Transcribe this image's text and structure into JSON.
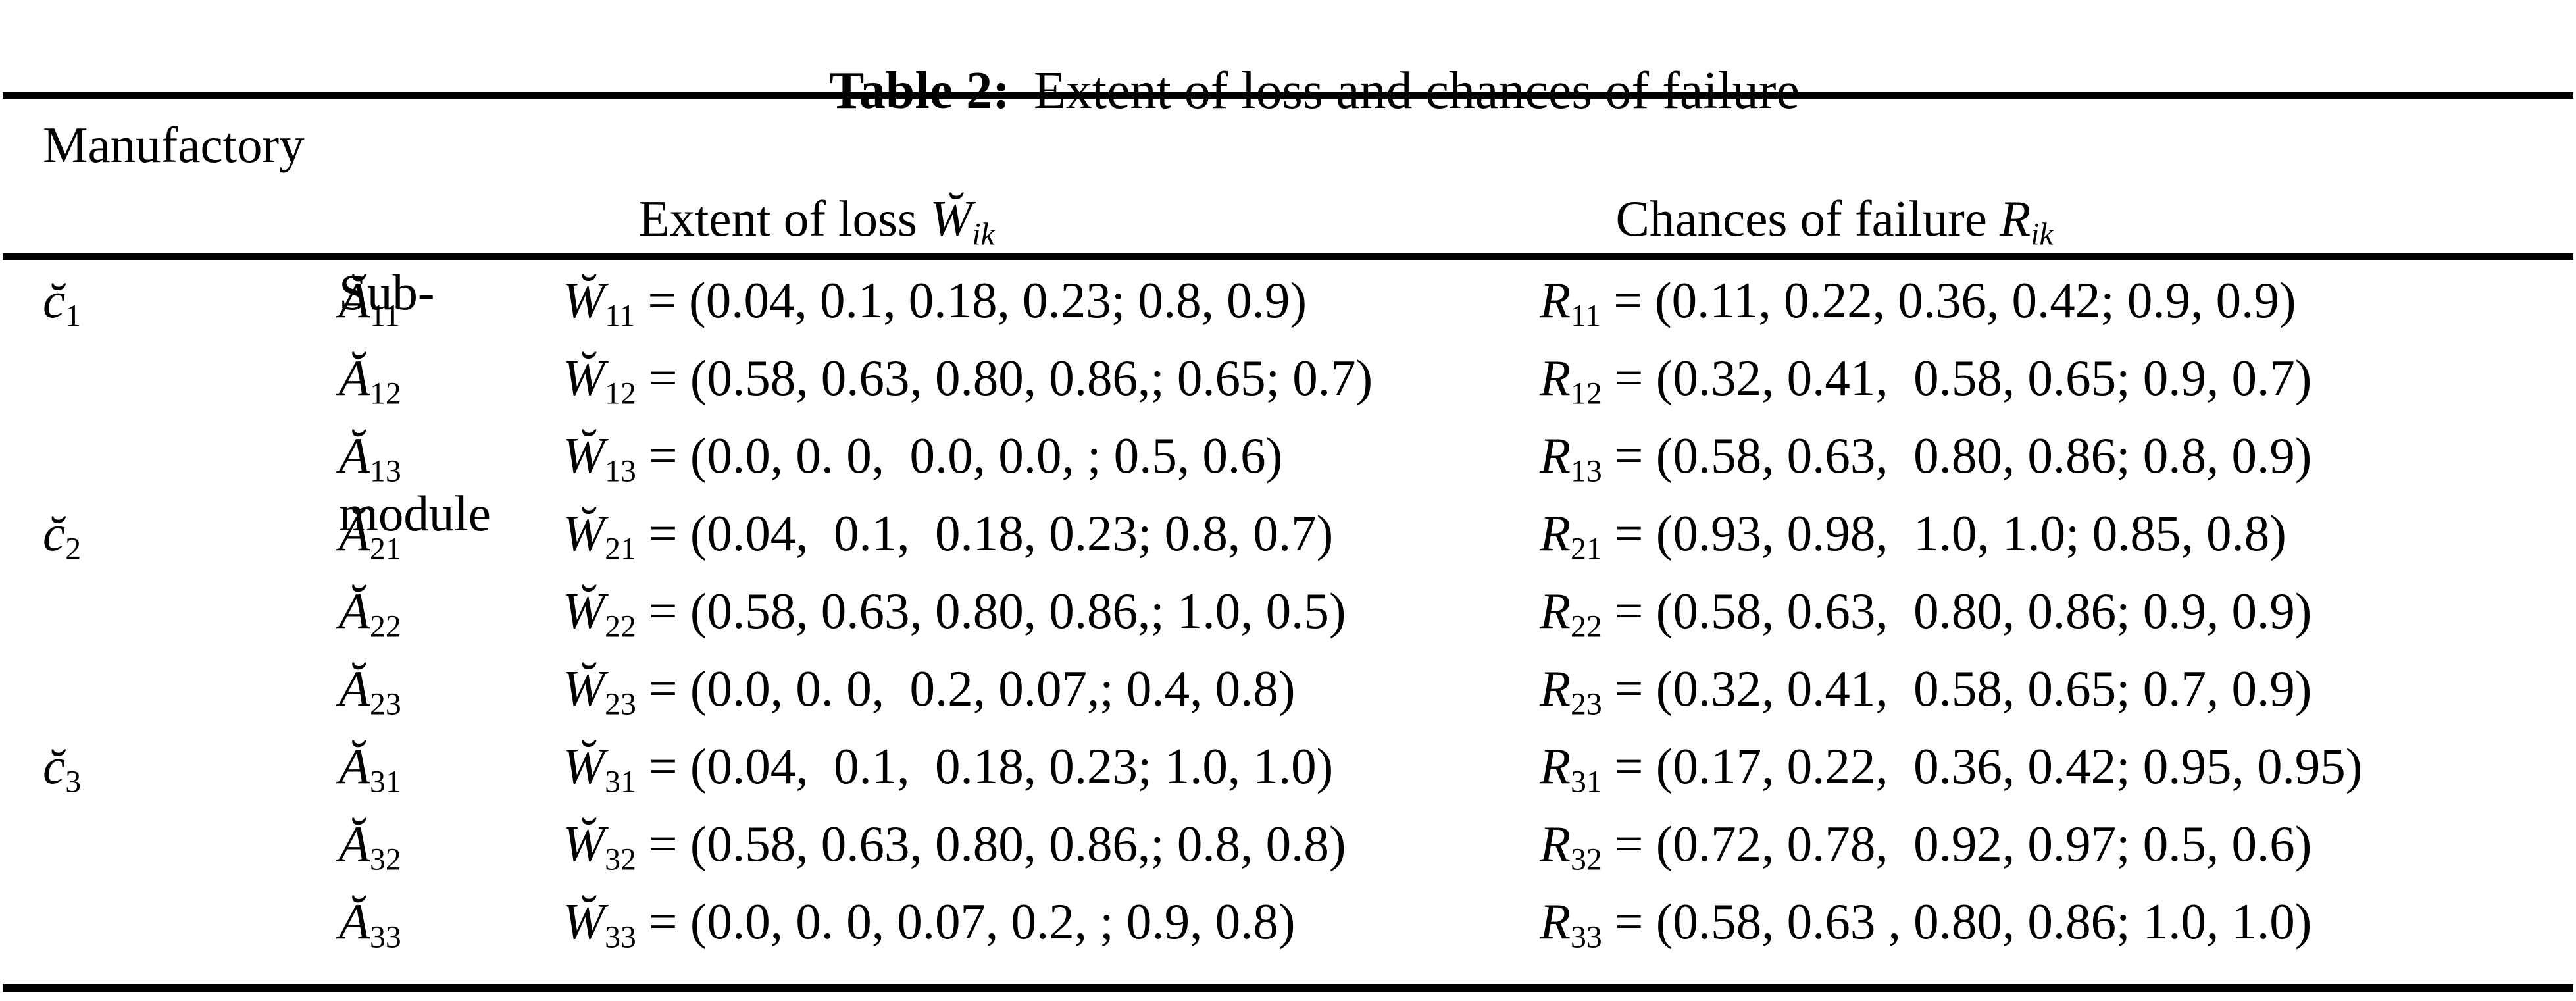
{
  "title": {
    "label": "Table 2:",
    "text": "Extent of loss and chances of failure"
  },
  "header": {
    "manufactory": "Manufactory",
    "submodule_line1": "Sub-",
    "submodule_line2": "module",
    "extent_text": "Extent of loss ",
    "extent_var": "W̆",
    "extent_sub": "ik",
    "chances_text": "Chances of failure ",
    "chances_var": "R",
    "chances_sub": "ik"
  },
  "rows": [
    {
      "group": "c̆",
      "group_sub": "1",
      "a_base": "Ă",
      "a_sub": "11",
      "w_base": "W̆",
      "w_sub": "11",
      "w_val": " = (0.04, 0.1, 0.18, 0.23; 0.8, 0.9)",
      "r_base": "R",
      "r_sub": "11",
      "r_val": " = (0.11, 0.22, 0.36, 0.42; 0.9, 0.9)"
    },
    {
      "group": "",
      "group_sub": "",
      "a_base": "Ă",
      "a_sub": "12",
      "w_base": "W̆",
      "w_sub": "12",
      "w_val": " = (0.58, 0.63, 0.80, 0.86,; 0.65; 0.7)",
      "r_base": "R",
      "r_sub": "12",
      "r_val": " = (0.32, 0.41,  0.58, 0.65; 0.9, 0.7)"
    },
    {
      "group": "",
      "group_sub": "",
      "a_base": "Ă",
      "a_sub": "13",
      "w_base": "W̆",
      "w_sub": "13",
      "w_val": " = (0.0, 0. 0,  0.0, 0.0, ; 0.5, 0.6)",
      "r_base": "R",
      "r_sub": "13",
      "r_val": " = (0.58, 0.63,  0.80, 0.86; 0.8, 0.9)"
    },
    {
      "group": "c̆",
      "group_sub": "2",
      "a_base": "Ă",
      "a_sub": "21",
      "w_base": "W̆",
      "w_sub": "21",
      "w_val": " = (0.04,  0.1,  0.18, 0.23; 0.8, 0.7)",
      "r_base": "R",
      "r_sub": "21",
      "r_val": " = (0.93, 0.98,  1.0, 1.0; 0.85, 0.8)"
    },
    {
      "group": "",
      "group_sub": "",
      "a_base": "Ă",
      "a_sub": "22",
      "w_base": "W̆",
      "w_sub": "22",
      "w_val": " = (0.58, 0.63, 0.80, 0.86,; 1.0, 0.5)",
      "r_base": "R",
      "r_sub": "22",
      "r_val": " = (0.58, 0.63,  0.80, 0.86; 0.9, 0.9)"
    },
    {
      "group": "",
      "group_sub": "",
      "a_base": "Ă",
      "a_sub": "23",
      "w_base": "W̆",
      "w_sub": "23",
      "w_val": " = (0.0, 0. 0,  0.2, 0.07,; 0.4, 0.8)",
      "r_base": "R",
      "r_sub": "23",
      "r_val": " = (0.32, 0.41,  0.58, 0.65; 0.7, 0.9)"
    },
    {
      "group": "c̆",
      "group_sub": "3",
      "a_base": "Ă",
      "a_sub": "31",
      "w_base": "W̆",
      "w_sub": "31",
      "w_val": " = (0.04,  0.1,  0.18, 0.23; 1.0, 1.0)",
      "r_base": "R",
      "r_sub": "31",
      "r_val": " = (0.17, 0.22,  0.36, 0.42; 0.95, 0.95)"
    },
    {
      "group": "",
      "group_sub": "",
      "a_base": "Ă",
      "a_sub": "32",
      "w_base": "W̆",
      "w_sub": "32",
      "w_val": " = (0.58, 0.63, 0.80, 0.86,; 0.8, 0.8)",
      "r_base": "R",
      "r_sub": "32",
      "r_val": " = (0.72, 0.78,  0.92, 0.97; 0.5, 0.6)"
    },
    {
      "group": "",
      "group_sub": "",
      "a_base": "Ă",
      "a_sub": "33",
      "w_base": "W̆",
      "w_sub": "33",
      "w_val": " = (0.0, 0. 0, 0.07, 0.2, ; 0.9, 0.8)",
      "r_base": "R",
      "r_sub": "33",
      "r_val": " = (0.58, 0.63 , 0.80, 0.86; 1.0, 1.0)"
    }
  ]
}
